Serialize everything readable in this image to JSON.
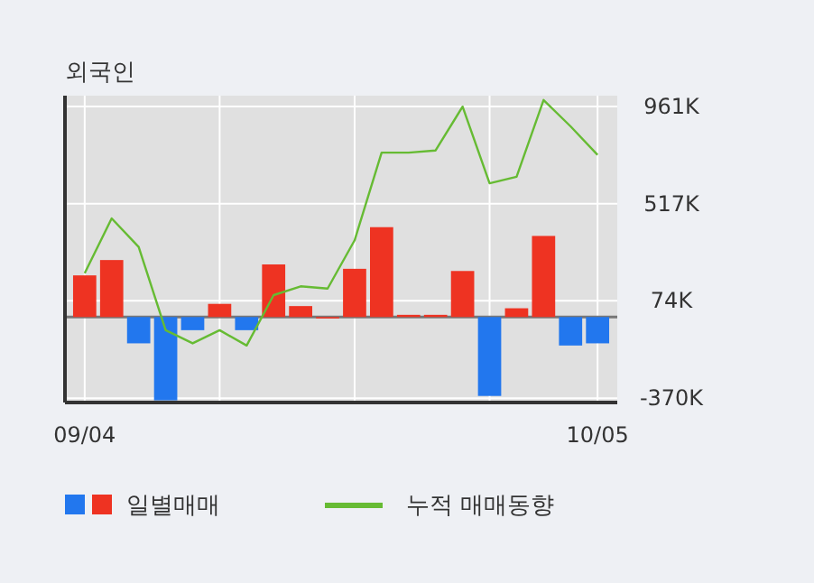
{
  "chart_data": {
    "type": "bar",
    "title": "외국인",
    "categories": [
      "09/04",
      null,
      null,
      null,
      null,
      null,
      null,
      null,
      null,
      null,
      null,
      null,
      null,
      null,
      null,
      null,
      null,
      null,
      null,
      "10/05"
    ],
    "series": [
      {
        "name": "일별매매",
        "colors": [
          "#ee3322",
          "#ee3322",
          "#2277ee",
          "#2277ee",
          "#2277ee",
          "#ee3322",
          "#2277ee",
          "#ee3322",
          "#ee3322",
          "#ee3322",
          "#ee3322",
          "#ee3322",
          "#ee3322",
          "#ee3322",
          "#ee3322",
          "#2277ee",
          "#ee3322",
          "#ee3322",
          "#2277ee",
          "#2277ee"
        ],
        "values": [
          190,
          260,
          -120,
          -380,
          -60,
          60,
          -60,
          240,
          50,
          0,
          220,
          410,
          10,
          10,
          210,
          -360,
          40,
          370,
          -130,
          -120
        ]
      },
      {
        "name": "누적 매매동향",
        "type": "line",
        "color": "#66bb33",
        "values": [
          200,
          450,
          320,
          -60,
          -120,
          -60,
          -130,
          100,
          140,
          130,
          350,
          750,
          750,
          760,
          960,
          610,
          640,
          990,
          870,
          740
        ]
      }
    ],
    "ylim": [
      -390,
      1010
    ],
    "yticks": [
      {
        "value": 961,
        "label": "961K"
      },
      {
        "value": 517,
        "label": "517K"
      },
      {
        "value": 74,
        "label": "74K"
      },
      {
        "value": -370,
        "label": "-370K"
      }
    ],
    "grid": true,
    "legend": "bottom",
    "marker": "none"
  }
}
